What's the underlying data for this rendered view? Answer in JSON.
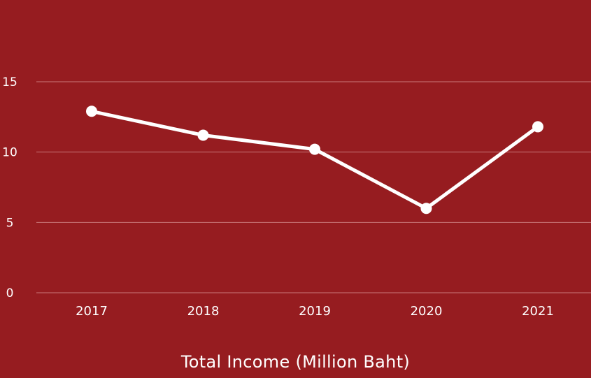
{
  "colors": {
    "background": "#961c20",
    "line": "#ffffff",
    "grid": "#c9777a",
    "text": "#ffffff"
  },
  "chart_data": {
    "type": "line",
    "categories": [
      "2017",
      "2018",
      "2019",
      "2020",
      "2021"
    ],
    "series": [
      {
        "values": [
          12.9,
          11.2,
          10.2,
          6.0,
          11.8
        ]
      }
    ],
    "xlabel": "Total Income (Million Baht)",
    "ylabel": "",
    "ylim": [
      0,
      15
    ],
    "yticks": [
      0,
      5,
      10,
      15
    ],
    "grid": true,
    "legend": "none"
  }
}
